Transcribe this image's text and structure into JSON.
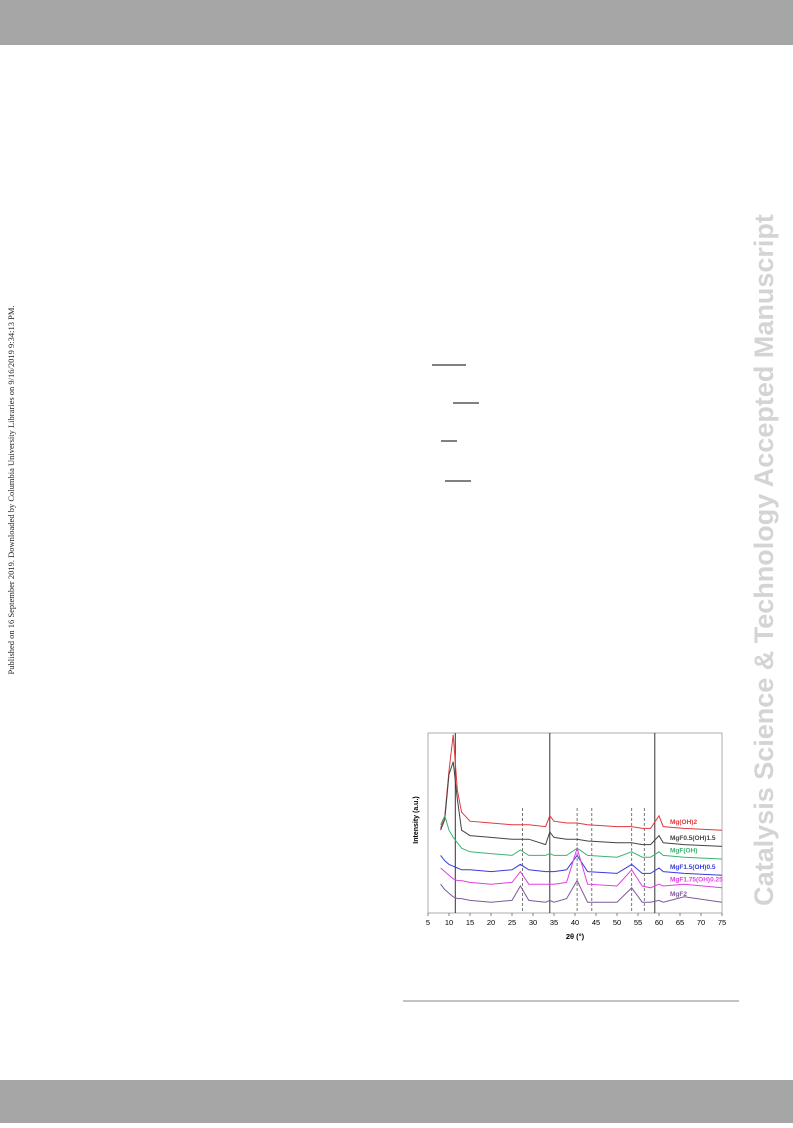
{
  "page": {
    "side_note": "Published on 16 September 2019. Downloaded by Columbia University Libraries on 9/16/2019 9:34:13 PM.",
    "watermark": "Catalysis Science & Technology Accepted Manuscript"
  },
  "chart_data": {
    "type": "line",
    "xlabel": "2θ (°)",
    "ylabel": "Intensity (a.u.)",
    "xlim": [
      5,
      75
    ],
    "ylim": [
      0,
      100
    ],
    "xticks": [
      5,
      10,
      15,
      20,
      25,
      30,
      35,
      40,
      45,
      50,
      55,
      60,
      65,
      70,
      75
    ],
    "solid_lines": [
      11.5,
      34,
      59
    ],
    "dashed_lines": [
      27.5,
      40.5,
      44,
      53.5,
      56.5
    ],
    "x": [
      8,
      9,
      10,
      11,
      12,
      13,
      15,
      20,
      25,
      27,
      29,
      33,
      34,
      35,
      38,
      40.5,
      43,
      50,
      53.5,
      56,
      58,
      60,
      61,
      66,
      75
    ],
    "series": [
      {
        "name": "Mg(OH)2",
        "color": "#e0393e",
        "values": [
          47,
          54,
          79,
          99,
          68,
          56,
          51,
          50,
          49,
          49,
          49,
          48,
          54,
          51,
          50,
          50,
          49,
          48,
          48,
          47,
          47,
          54,
          48,
          47,
          46
        ]
      },
      {
        "name": "MgF0.5(OH)1.5",
        "color": "#444444",
        "values": [
          46,
          52,
          77,
          84,
          63,
          46,
          43,
          42,
          41,
          41,
          41,
          38,
          45,
          42,
          41,
          41,
          40,
          39,
          39,
          38,
          38,
          43,
          39,
          38,
          37
        ]
      },
      {
        "name": "MgF(OH)",
        "color": "#3cb371",
        "values": [
          49,
          54,
          46,
          42,
          39,
          36,
          34,
          33,
          32,
          35,
          32,
          32,
          33,
          32,
          32,
          36,
          32,
          31,
          34,
          31,
          31,
          34,
          32,
          31,
          30
        ]
      },
      {
        "name": "MgF1.5(OH)0.5",
        "color": "#3a3ae0",
        "values": [
          32,
          29,
          27,
          26,
          25,
          24,
          24,
          23,
          24,
          27,
          24,
          23,
          23,
          23,
          24,
          32,
          23,
          22,
          27,
          22,
          22,
          25,
          23,
          22,
          21
        ]
      },
      {
        "name": "MgF1.75(OH)0.25",
        "color": "#e040e0",
        "values": [
          25,
          23,
          21,
          19,
          18,
          18,
          17,
          16,
          17,
          23,
          16,
          16,
          16,
          16,
          17,
          36,
          16,
          15,
          24,
          15,
          14,
          16,
          15,
          16,
          14
        ]
      },
      {
        "name": "MgF2",
        "color": "#7d5a9a",
        "values": [
          16,
          13,
          11,
          9,
          8,
          8,
          7,
          6,
          7,
          15,
          7,
          6,
          7,
          6,
          8,
          18,
          6,
          6,
          14,
          6,
          6,
          7,
          6,
          9,
          6
        ]
      }
    ]
  }
}
